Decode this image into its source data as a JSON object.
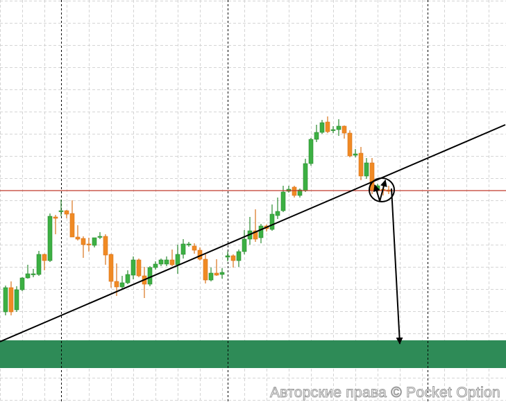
{
  "chart_data": {
    "type": "candlestick",
    "title": "",
    "xlabel": "",
    "ylabel": "",
    "ylim": [
      20,
      600
    ],
    "xlim": [
      -1,
      90
    ],
    "grid": true,
    "colors": {
      "up": "#3cb043",
      "down": "#f08a24",
      "up_border": "#2a8a30",
      "down_border": "#d9731a",
      "grid": "#d4d4d4",
      "session_line": "#000000",
      "resistance_line": "#c0392b",
      "trend_line": "#000000",
      "zone": "#2e8b57"
    },
    "session_separators": [
      10,
      40,
      76
    ],
    "candles_ohlc": [
      [
        150,
        188,
        145,
        185
      ],
      [
        185,
        194,
        145,
        150
      ],
      [
        153,
        187,
        150,
        182
      ],
      [
        182,
        200,
        180,
        199
      ],
      [
        199,
        218,
        198,
        205
      ],
      [
        204,
        212,
        200,
        205
      ],
      [
        204,
        238,
        202,
        233
      ],
      [
        233,
        234,
        210,
        224
      ],
      [
        224,
        292,
        222,
        288
      ],
      [
        287,
        290,
        262,
        285
      ],
      [
        295,
        312,
        288,
        296
      ],
      [
        296,
        297,
        285,
        291
      ],
      [
        292,
        311,
        258,
        258
      ],
      [
        258,
        275,
        253,
        255
      ],
      [
        256,
        259,
        228,
        247
      ],
      [
        248,
        257,
        237,
        247
      ],
      [
        246,
        257,
        243,
        257
      ],
      [
        258,
        265,
        255,
        259
      ],
      [
        259,
        262,
        218,
        232
      ],
      [
        233,
        234,
        185,
        194
      ],
      [
        194,
        220,
        173,
        186
      ],
      [
        186,
        202,
        183,
        192
      ],
      [
        192,
        210,
        190,
        204
      ],
      [
        203,
        230,
        197,
        225
      ],
      [
        225,
        227,
        200,
        202
      ],
      [
        202,
        215,
        170,
        190
      ],
      [
        190,
        216,
        187,
        214
      ],
      [
        214,
        223,
        211,
        219
      ],
      [
        219,
        227,
        216,
        225
      ],
      [
        219,
        230,
        216,
        225
      ],
      [
        225,
        240,
        216,
        218
      ],
      [
        218,
        247,
        205,
        233
      ],
      [
        233,
        255,
        227,
        248
      ],
      [
        247,
        251,
        244,
        248
      ],
      [
        245,
        249,
        234,
        239
      ],
      [
        239,
        243,
        224,
        226
      ],
      [
        226,
        233,
        191,
        196
      ],
      [
        196,
        214,
        194,
        206
      ],
      [
        206,
        226,
        202,
        203
      ],
      [
        204,
        213,
        198,
        207
      ],
      [
        229,
        237,
        223,
        231
      ],
      [
        231,
        233,
        214,
        224
      ],
      [
        224,
        240,
        215,
        237
      ],
      [
        237,
        268,
        233,
        255
      ],
      [
        255,
        287,
        247,
        267
      ],
      [
        267,
        298,
        251,
        255
      ],
      [
        257,
        277,
        249,
        274
      ],
      [
        274,
        276,
        266,
        270
      ],
      [
        269,
        305,
        267,
        291
      ],
      [
        289,
        315,
        284,
        295
      ],
      [
        296,
        332,
        294,
        323
      ],
      [
        324,
        332,
        322,
        327
      ],
      [
        330,
        332,
        315,
        318
      ],
      [
        318,
        328,
        315,
        326
      ],
      [
        325,
        371,
        323,
        364
      ],
      [
        364,
        401,
        361,
        399
      ],
      [
        399,
        420,
        395,
        409
      ],
      [
        409,
        427,
        407,
        423
      ],
      [
        424,
        432,
        408,
        410
      ],
      [
        412,
        418,
        408,
        413
      ],
      [
        413,
        428,
        404,
        418
      ],
      [
        418,
        419,
        400,
        408
      ],
      [
        408,
        412,
        373,
        375
      ],
      [
        376,
        385,
        373,
        378
      ],
      [
        379,
        388,
        340,
        346
      ],
      [
        346,
        372,
        342,
        365
      ],
      [
        365,
        372,
        320,
        325
      ],
      [
        325,
        335,
        320,
        332
      ],
      [
        327,
        332,
        318,
        325
      ],
      [
        326,
        332,
        320,
        324
      ]
    ],
    "annotations": {
      "resistance_level": 325,
      "trend_line": {
        "from": [
          -1,
          107
        ],
        "to": [
          90,
          420
        ]
      },
      "target_zone": [
        69,
        109
      ],
      "circle_center": [
        67.75,
        326
      ],
      "zigzag": [
        [
          66.5,
          337
        ],
        [
          67.4,
          310
        ],
        [
          68.4,
          338
        ]
      ],
      "forecast_arrow": {
        "from": [
          69.5,
          328
        ],
        "to": [
          71,
          104
        ]
      }
    }
  },
  "watermark": "Авторские права © Pocket Option"
}
